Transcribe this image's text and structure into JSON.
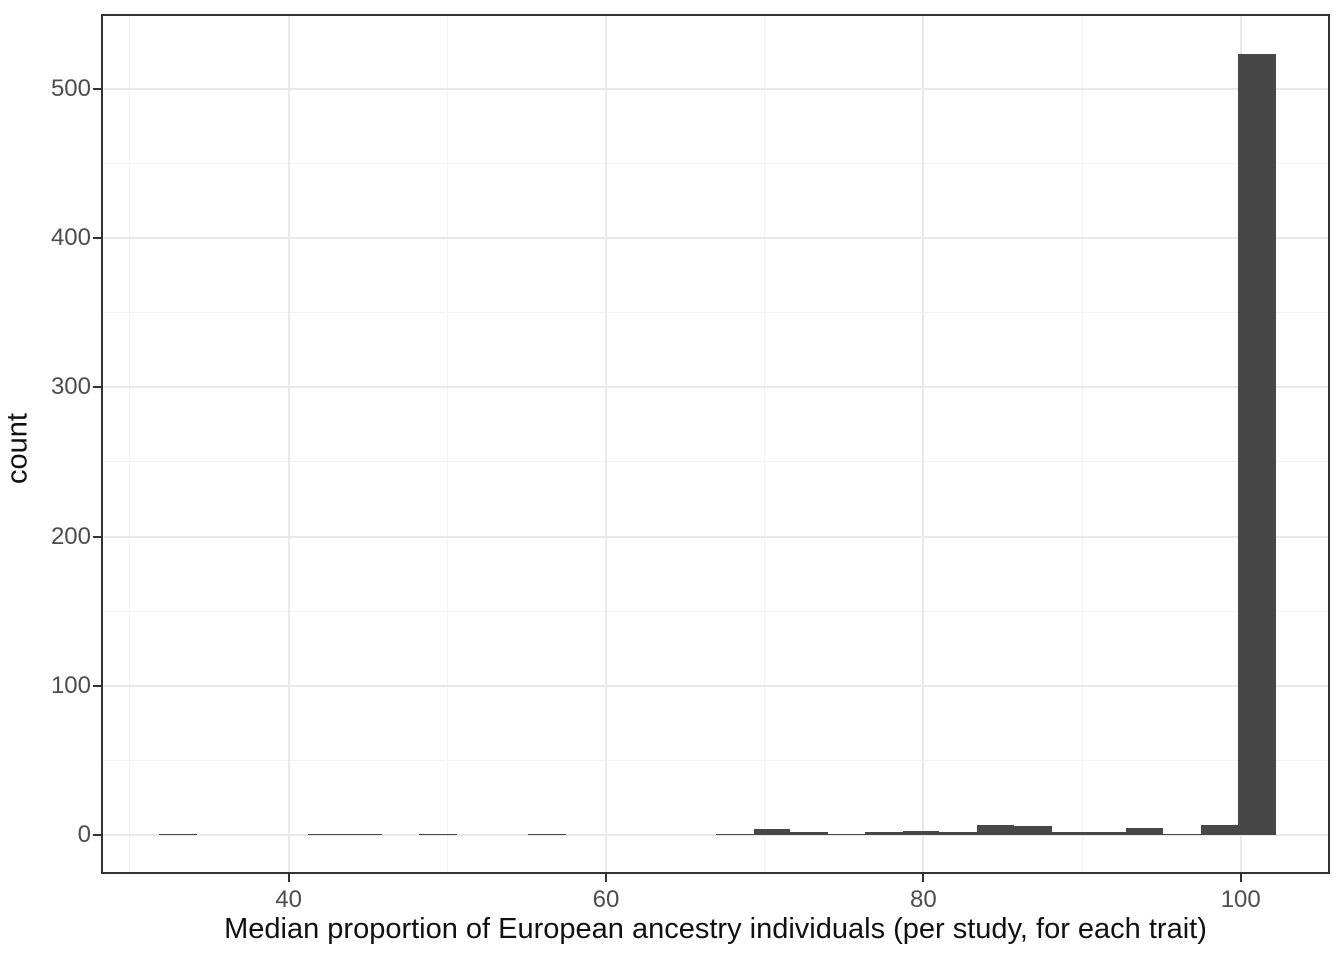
{
  "chart_data": {
    "type": "bar",
    "subtype": "histogram",
    "title": "",
    "xlabel": "Median proportion of European ancestry individuals (per study, for each trait)",
    "ylabel": "count",
    "xlim": [
      28.3,
      105.5
    ],
    "ylim": [
      -24.6,
      548.6
    ],
    "x_major_ticks": [
      40,
      60,
      80,
      100
    ],
    "x_minor_gridlines": [
      30,
      50,
      70,
      90
    ],
    "y_major_ticks": [
      0,
      100,
      200,
      300,
      400,
      500
    ],
    "y_minor_gridlines": [
      50,
      150,
      250,
      350,
      450
    ],
    "grid": "major and minor, light gray on white (theme_bw)",
    "legend_position": "none",
    "bins": [
      {
        "x0": 31.8,
        "x1": 34.2,
        "count": 1
      },
      {
        "x0": 41.2,
        "x1": 43.6,
        "count": 1
      },
      {
        "x0": 43.6,
        "x1": 45.9,
        "count": 1
      },
      {
        "x0": 48.2,
        "x1": 50.6,
        "count": 1
      },
      {
        "x0": 55.1,
        "x1": 57.5,
        "count": 1
      },
      {
        "x0": 66.9,
        "x1": 69.3,
        "count": 1
      },
      {
        "x0": 69.3,
        "x1": 71.6,
        "count": 4
      },
      {
        "x0": 71.6,
        "x1": 74.0,
        "count": 2
      },
      {
        "x0": 74.0,
        "x1": 76.3,
        "count": 1
      },
      {
        "x0": 76.3,
        "x1": 78.7,
        "count": 2
      },
      {
        "x0": 78.7,
        "x1": 81.0,
        "count": 3
      },
      {
        "x0": 81.0,
        "x1": 83.4,
        "count": 2
      },
      {
        "x0": 83.4,
        "x1": 85.7,
        "count": 7
      },
      {
        "x0": 85.7,
        "x1": 88.1,
        "count": 6
      },
      {
        "x0": 88.1,
        "x1": 90.4,
        "count": 2
      },
      {
        "x0": 90.4,
        "x1": 92.8,
        "count": 2
      },
      {
        "x0": 92.8,
        "x1": 95.1,
        "count": 5
      },
      {
        "x0": 95.1,
        "x1": 97.5,
        "count": 1
      },
      {
        "x0": 97.5,
        "x1": 99.8,
        "count": 7
      },
      {
        "x0": 99.8,
        "x1": 102.2,
        "count": 523
      }
    ],
    "colors": {
      "bar_fill": "#474747",
      "panel_border": "#333333",
      "grid_major": "#e9e9e9",
      "grid_minor": "#f3f3f3",
      "tick_mark": "#333333",
      "tick_label": "#4d4d4d",
      "axis_title": "#111111",
      "background": "#ffffff"
    }
  }
}
